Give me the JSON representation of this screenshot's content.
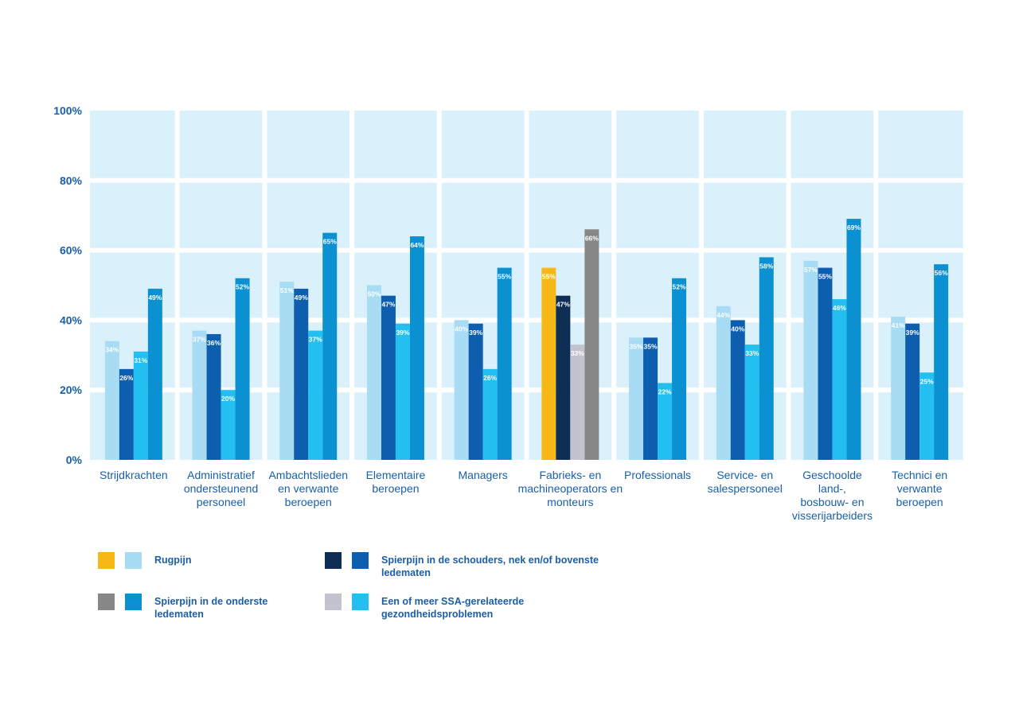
{
  "chart_data": {
    "type": "bar",
    "ylim": [
      0,
      100
    ],
    "yticks": [
      "0%",
      "20%",
      "40%",
      "60%",
      "80%",
      "100%"
    ],
    "categories": [
      "Strijdkrachten",
      "Administratief ondersteunend personeel",
      "Ambachtslieden en verwante beroepen",
      "Elementaire beroepen",
      "Managers",
      "Fabrieks- en machineoperators en monteurs",
      "Professionals",
      "Service- en salespersoneel",
      "Geschoolde land-, bosbouw- en visserijarbeiders",
      "Technici en verwante beroepen"
    ],
    "category_lines": [
      "Strijdkrachten",
      "Administratief\nondersteunend\npersoneel",
      "Ambachtslieden\nen verwante\nberoepen",
      "Elementaire\nberoepen",
      "Managers",
      "Fabrieks- en\nmachineoperators en\nmonteurs",
      "Professionals",
      "Service- en\nsalespersoneel",
      "Geschoolde\nland-,\nbosbouw- en\nvisserijarbeiders",
      "Technici en\nverwante\nberoepen"
    ],
    "series": [
      {
        "name": "Rugpijn",
        "values": [
          34,
          37,
          51,
          50,
          40,
          55,
          35,
          44,
          57,
          41
        ]
      },
      {
        "name": "Spierpijn in de schouders, nek en/of bovenste ledematen",
        "values": [
          26,
          36,
          49,
          47,
          39,
          47,
          35,
          40,
          55,
          39
        ]
      },
      {
        "name": "Een of meer SSA-gerelateerde gezondheidsproblemen",
        "values": [
          31,
          20,
          37,
          39,
          26,
          33,
          22,
          33,
          46,
          25
        ]
      },
      {
        "name": "Spierpijn in de onderste ledematen",
        "values": [
          49,
          52,
          65,
          64,
          55,
          66,
          52,
          58,
          69,
          56
        ]
      }
    ],
    "highlight_category": "Fabrieks- en machineoperators en monteurs",
    "colors": {
      "default": [
        "#a8dcf5",
        "#0d5eaf",
        "#22bff0",
        "#0b90d2"
      ],
      "highlight": [
        "#f6b817",
        "#0f2e55",
        "#c3c3cf",
        "#878787"
      ],
      "panel": "#daf1fc",
      "label_text": "#1a5fa8",
      "bar_label": "#ffffff"
    },
    "value_suffix": "%"
  },
  "legend": {
    "items": [
      {
        "label": "Rugpijn",
        "colors": [
          "#f6b817",
          "#a8dcf5"
        ]
      },
      {
        "label": "Spierpijn in de schouders, nek en/of bovenste ledematen",
        "colors": [
          "#0f2e55",
          "#0d5eaf"
        ]
      },
      {
        "label": "Spierpijn in de onderste ledematen",
        "colors": [
          "#878787",
          "#0b90d2"
        ]
      },
      {
        "label": "Een of meer SSA-gerelateerde gezondheidsproblemen",
        "colors": [
          "#c3c3cf",
          "#22bff0"
        ]
      }
    ]
  }
}
